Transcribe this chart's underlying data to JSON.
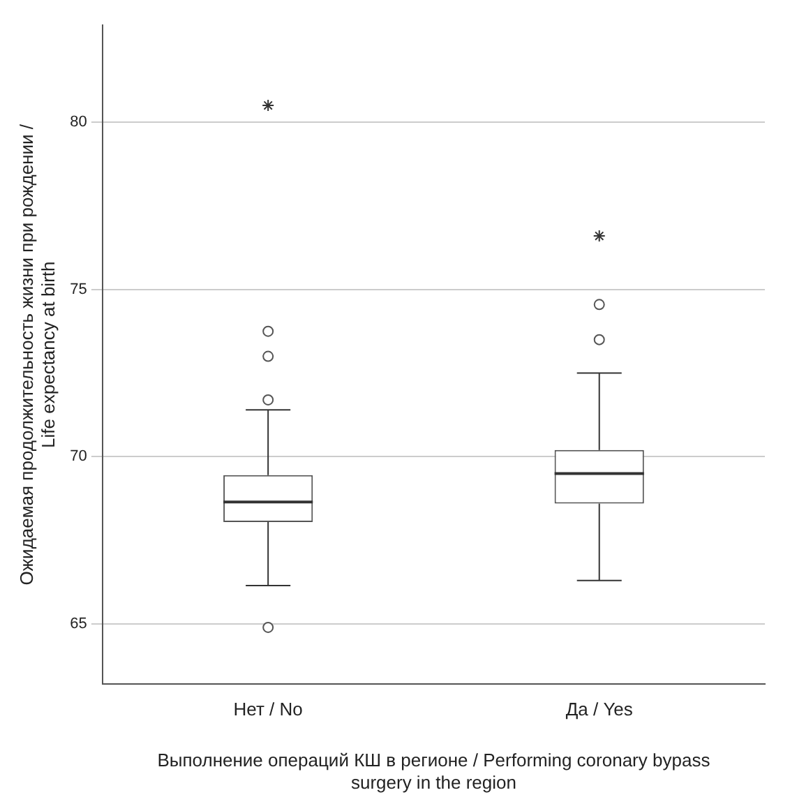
{
  "chart_data": {
    "type": "box",
    "categories": [
      "Нет / No",
      "Да / Yes"
    ],
    "xlabel": "Выполнение операций КШ в регионе / Performing coronary bypass surgery in the region",
    "ylabel": "Ожидаемая продолжительность жизни при рождении / Life expectancy at birth",
    "boxes": [
      {
        "low": 66.15,
        "q1": 68.05,
        "median": 68.65,
        "q3": 69.45,
        "high": 71.4,
        "outliers": [
          73.75,
          73.0,
          71.7,
          64.9
        ]
      },
      {
        "low": 66.3,
        "q1": 68.6,
        "median": 69.5,
        "q3": 70.2,
        "high": 72.5,
        "outliers": [
          74.55,
          73.5
        ]
      }
    ],
    "series": [
      {
        "type": "scatter",
        "x": [
          "Нет / No",
          "Да / Yes"
        ],
        "values": [
          80.5,
          76.6
        ],
        "marker": "cross",
        "color": "#333333"
      }
    ],
    "color": "#555555",
    "ylim": [
      63.2,
      82.9
    ],
    "yticks": [
      65,
      70,
      75,
      80
    ],
    "grid": "y"
  }
}
